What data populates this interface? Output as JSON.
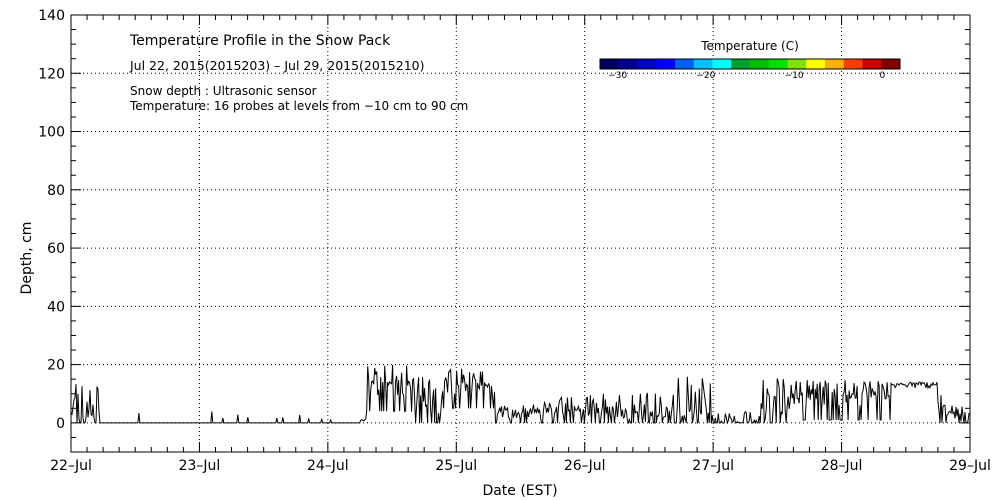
{
  "chart_data": {
    "type": "line",
    "title": "Temperature Profile in the Snow Pack",
    "subtitle": "Jul 22, 2015(2015203) – Jul 29, 2015(2015210)",
    "notes": [
      "Snow depth : Ultrasonic sensor",
      "Temperature: 16 probes at levels from −10 cm to 90 cm"
    ],
    "xlabel": "Date (EST)",
    "ylabel": "Depth, cm",
    "x_ticks": [
      "22–Jul",
      "23–Jul",
      "24–Jul",
      "25–Jul",
      "26–Jul",
      "27–Jul",
      "28–Jul",
      "29–Jul"
    ],
    "xlim_days": [
      0,
      7
    ],
    "ylim": [
      -10,
      140
    ],
    "y_ticks": [
      "0",
      "20",
      "40",
      "60",
      "80",
      "100",
      "120",
      "140"
    ],
    "y_tick_values": [
      0,
      20,
      40,
      60,
      80,
      100,
      120,
      140
    ],
    "grid": "dotted at major ticks",
    "colorbar": {
      "title": "Temperature (C)",
      "range": [
        -32,
        2
      ],
      "tick_labels": [
        "−30",
        "−20",
        "−10",
        "0"
      ],
      "tick_values": [
        -30,
        -20,
        -10,
        0
      ],
      "colors": [
        "#000060",
        "#000090",
        "#0000c0",
        "#0000ff",
        "#0060ff",
        "#00c0ff",
        "#00ffff",
        "#00a030",
        "#00c000",
        "#00e000",
        "#80e000",
        "#ffff00",
        "#ffb000",
        "#ff4000",
        "#d00000",
        "#800000"
      ]
    },
    "series": [
      {
        "name": "Snow depth",
        "color": "#000000",
        "segments": [
          {
            "start": 0.0,
            "end": 0.22,
            "base": 2,
            "amp": 12,
            "noise": 1,
            "duty": 0.6
          },
          {
            "start": 0.22,
            "end": 2.25,
            "base": 0,
            "amp": 0,
            "noise": 0,
            "duty": 0
          },
          {
            "start": 2.25,
            "end": 2.3,
            "base": 1,
            "amp": 0,
            "noise": 0.5,
            "duty": 0
          },
          {
            "start": 2.3,
            "end": 2.65,
            "base": 12,
            "amp": 8,
            "noise": 3,
            "duty": 0.5
          },
          {
            "start": 2.65,
            "end": 2.9,
            "base": 6,
            "amp": 10,
            "noise": 3,
            "duty": 0.6
          },
          {
            "start": 2.9,
            "end": 3.3,
            "base": 12,
            "amp": 7,
            "noise": 3,
            "duty": 0.4
          },
          {
            "start": 3.3,
            "end": 3.55,
            "base": 3,
            "amp": 3,
            "noise": 1.5,
            "duty": 0.5
          },
          {
            "start": 3.55,
            "end": 3.8,
            "base": 3,
            "amp": 4,
            "noise": 2,
            "duty": 0.6
          },
          {
            "start": 3.8,
            "end": 4.3,
            "base": 4,
            "amp": 6,
            "noise": 2,
            "duty": 0.5
          },
          {
            "start": 4.3,
            "end": 4.6,
            "base": 2,
            "amp": 10,
            "noise": 2,
            "duty": 0.6
          },
          {
            "start": 4.6,
            "end": 5.0,
            "base": 2,
            "amp": 14,
            "noise": 3,
            "duty": 0.6
          },
          {
            "start": 5.0,
            "end": 5.35,
            "base": 0,
            "amp": 4,
            "noise": 1,
            "duty": 0.4
          },
          {
            "start": 5.35,
            "end": 5.6,
            "base": 3,
            "amp": 13,
            "noise": 2,
            "duty": 0.8
          },
          {
            "start": 5.6,
            "end": 6.4,
            "base": 8,
            "amp": 7,
            "noise": 2,
            "duty": 0.8
          },
          {
            "start": 6.4,
            "end": 6.75,
            "base": 13,
            "amp": 1,
            "noise": 1,
            "duty": 0.2
          },
          {
            "start": 6.75,
            "end": 6.82,
            "base": 5,
            "amp": 5,
            "noise": 2,
            "duty": 0.6
          },
          {
            "start": 6.82,
            "end": 7.0,
            "base": 2,
            "amp": 4,
            "noise": 2,
            "duty": 0.6
          }
        ],
        "spikes": [
          0.53,
          1.1,
          1.18,
          1.3,
          1.38,
          1.6,
          1.65,
          1.78,
          1.85,
          1.95,
          2.02
        ]
      }
    ]
  }
}
